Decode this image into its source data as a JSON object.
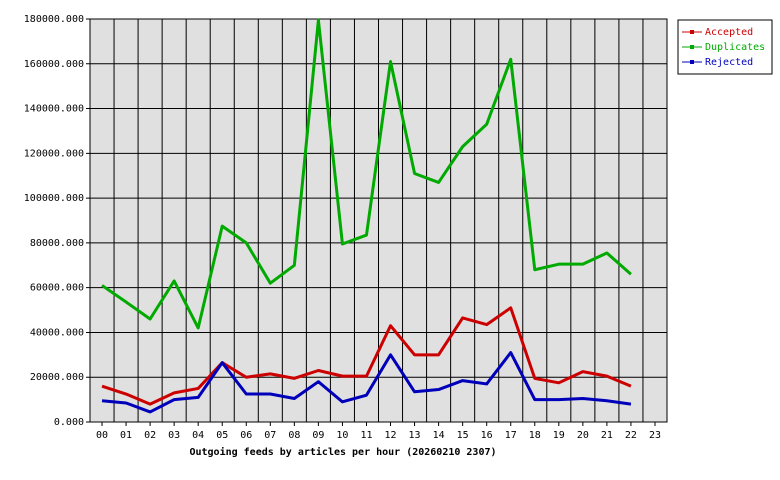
{
  "chart_data": {
    "type": "line",
    "x_label": "Outgoing feeds by articles per hour (20260210 2307)",
    "categories": [
      "00",
      "01",
      "02",
      "03",
      "04",
      "05",
      "06",
      "07",
      "08",
      "09",
      "10",
      "11",
      "12",
      "13",
      "14",
      "15",
      "16",
      "17",
      "18",
      "19",
      "20",
      "21",
      "22",
      "23"
    ],
    "series": [
      {
        "name": "Accepted",
        "color": "#cc0000",
        "values": [
          16000,
          12500,
          8000,
          13000,
          15000,
          26500,
          20000,
          21500,
          19500,
          23000,
          20500,
          20500,
          43000,
          30000,
          30000,
          46500,
          43500,
          51000,
          19500,
          17500,
          22500,
          20500,
          16000,
          null
        ]
      },
      {
        "name": "Duplicates",
        "color": "#00aa00",
        "values": [
          61000,
          53600,
          46000,
          63000,
          42000,
          87500,
          80000,
          62000,
          70000,
          179500,
          79500,
          83500,
          161000,
          111000,
          107000,
          123000,
          133000,
          162000,
          68000,
          70500,
          70500,
          75500,
          66000,
          null
        ]
      },
      {
        "name": "Rejected",
        "color": "#0000bb",
        "values": [
          9500,
          8500,
          4500,
          10000,
          11000,
          26500,
          12500,
          12500,
          10500,
          18000,
          9000,
          12000,
          30000,
          13500,
          14500,
          18500,
          17000,
          31000,
          10000,
          10000,
          10500,
          9500,
          8000,
          null
        ]
      }
    ],
    "ylim": [
      0,
      180000
    ],
    "yticks": [
      {
        "value": 0,
        "label": "0.000"
      },
      {
        "value": 20000,
        "label": "20000.000"
      },
      {
        "value": 40000,
        "label": "40000.000"
      },
      {
        "value": 60000,
        "label": "60000.000"
      },
      {
        "value": 80000,
        "label": "80000.000"
      },
      {
        "value": 100000,
        "label": "100000.000"
      },
      {
        "value": 120000,
        "label": "120000.000"
      },
      {
        "value": 140000,
        "label": "140000.000"
      },
      {
        "value": 160000,
        "label": "160000.000"
      },
      {
        "value": 180000,
        "label": "180000.000"
      }
    ],
    "grid": true,
    "legend": "right"
  }
}
